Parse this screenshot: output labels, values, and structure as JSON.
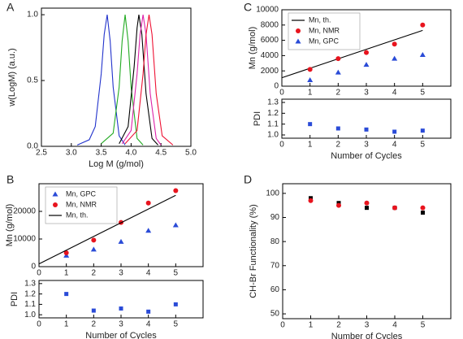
{
  "chart_data": [
    {
      "type": "line",
      "panel": "A",
      "xlabel": "Log M (g/mol)",
      "ylabel": "w(LogM) (a.u.)",
      "xlim": [
        2.5,
        5.0
      ],
      "xticks": [
        2.5,
        {
          "value": 3.0,
          "label": "3.0"
        },
        3.5,
        {
          "value": 4.0,
          "label": "4.0"
        },
        4.5,
        {
          "value": 5.0,
          "label": "5.0"
        }
      ],
      "ylim": [
        0,
        1.05
      ],
      "yticks": [
        {
          "value": 0,
          "label": "0.0"
        },
        0.5,
        {
          "value": 1.0,
          "label": "1.0"
        }
      ],
      "series": [
        {
          "color": "#2233cc",
          "x": [
            3.1,
            3.3,
            3.4,
            3.5,
            3.55,
            3.6,
            3.65,
            3.7,
            3.8,
            3.9
          ],
          "values": [
            0.01,
            0.05,
            0.15,
            0.55,
            0.85,
            1.0,
            0.8,
            0.45,
            0.08,
            0.01
          ]
        },
        {
          "color": "#22aa22",
          "x": [
            3.5,
            3.7,
            3.8,
            3.85,
            3.9,
            3.95,
            4.0,
            4.1,
            4.2
          ],
          "values": [
            0.02,
            0.1,
            0.45,
            0.8,
            1.0,
            0.8,
            0.45,
            0.06,
            0.01
          ]
        },
        {
          "color": "#000000",
          "x": [
            3.8,
            3.95,
            4.05,
            4.1,
            4.13,
            4.18,
            4.25,
            4.35,
            4.45
          ],
          "values": [
            0.02,
            0.15,
            0.6,
            0.9,
            1.0,
            0.85,
            0.4,
            0.06,
            0.01
          ]
        },
        {
          "color": "#dd22aa",
          "x": [
            3.85,
            4.0,
            4.1,
            4.15,
            4.2,
            4.25,
            4.32,
            4.42,
            4.5
          ],
          "values": [
            0.02,
            0.12,
            0.55,
            0.85,
            1.0,
            0.85,
            0.4,
            0.06,
            0.01
          ]
        },
        {
          "color": "#ee1133",
          "x": [
            3.9,
            4.1,
            4.2,
            4.25,
            4.3,
            4.35,
            4.42,
            4.52,
            4.7
          ],
          "values": [
            0.02,
            0.12,
            0.55,
            0.85,
            1.0,
            0.85,
            0.4,
            0.08,
            0.01
          ]
        }
      ]
    },
    {
      "type": "scatter",
      "panel": "B",
      "ylabel": "Mn (g/mol)",
      "legend": "upper left",
      "x": [
        1,
        2,
        3,
        4,
        5
      ],
      "xlim": [
        0,
        6
      ],
      "xticks": [
        0,
        1,
        2,
        3,
        4,
        5
      ],
      "ylim": [
        0,
        30000
      ],
      "yticks": [
        0,
        10000,
        20000
      ],
      "series": [
        {
          "name": "Mn, GPC",
          "color": "#2a4bd7",
          "marker": "triangle",
          "values": [
            4000,
            6200,
            9000,
            13000,
            15000
          ]
        },
        {
          "name": "Mn, NMR",
          "color": "#e8141e",
          "marker": "circle",
          "values": [
            5000,
            9600,
            16000,
            23000,
            27500
          ]
        },
        {
          "name": "Mn, th.",
          "color": "#000000",
          "marker": "line",
          "x": [
            0,
            5
          ],
          "values": [
            1000,
            25800
          ]
        }
      ]
    },
    {
      "type": "scatter",
      "ylabel": "PDI",
      "xlabel": "Number of Cycles",
      "x": [
        1,
        2,
        3,
        4,
        5
      ],
      "xlim": [
        0,
        6
      ],
      "xticks": [
        0,
        1,
        2,
        3,
        4,
        5
      ],
      "ylim": [
        0.97,
        1.33
      ],
      "yticks": [
        {
          "value": 1.0,
          "label": "1.0"
        },
        1.1,
        1.2,
        1.3
      ],
      "series": [
        {
          "color": "#2a4bd7",
          "marker": "square",
          "values": [
            1.2,
            1.04,
            1.06,
            1.03,
            1.1
          ]
        }
      ]
    },
    {
      "type": "scatter",
      "panel": "C",
      "ylabel": "Mn (g/mol)",
      "legend": "upper left",
      "x": [
        1,
        2,
        3,
        4,
        5
      ],
      "xlim": [
        0,
        6
      ],
      "xticks": [
        0,
        1,
        2,
        3,
        4,
        5
      ],
      "ylim": [
        0,
        10000
      ],
      "yticks": [
        0,
        2000,
        4000,
        6000,
        8000,
        10000
      ],
      "series": [
        {
          "name": "Mn, th.",
          "color": "#000000",
          "marker": "line",
          "x": [
            0,
            5
          ],
          "values": [
            1100,
            7300
          ]
        },
        {
          "name": "Mn, NMR",
          "color": "#e8141e",
          "marker": "circle",
          "values": [
            2200,
            3600,
            4400,
            5500,
            8000
          ]
        },
        {
          "name": "Mn, GPC",
          "color": "#2a4bd7",
          "marker": "triangle",
          "values": [
            800,
            1800,
            2800,
            3600,
            4100
          ]
        }
      ]
    },
    {
      "type": "scatter",
      "ylabel": "PDI",
      "xlabel": "Number of Cycles",
      "x": [
        1,
        2,
        3,
        4,
        5
      ],
      "xlim": [
        0,
        6
      ],
      "xticks": [
        0,
        1,
        2,
        3,
        4,
        5
      ],
      "ylim": [
        0.97,
        1.33
      ],
      "yticks": [
        {
          "value": 1.0,
          "label": "1.0"
        },
        1.1,
        1.2,
        1.3
      ],
      "series": [
        {
          "color": "#2a4bd7",
          "marker": "square",
          "values": [
            1.1,
            1.06,
            1.05,
            1.03,
            1.04
          ]
        }
      ]
    },
    {
      "type": "scatter",
      "panel": "D",
      "ylabel": "CH-Br Functionality (%)",
      "xlabel": "Number of Cycles",
      "x": [
        1,
        2,
        3,
        4,
        5
      ],
      "xlim": [
        0,
        6
      ],
      "xticks": [
        0,
        1,
        2,
        3,
        4,
        5
      ],
      "ylim": [
        48,
        104
      ],
      "yticks": [
        50,
        60,
        70,
        80,
        90,
        100
      ],
      "series": [
        {
          "color": "#000000",
          "marker": "square",
          "values": [
            98,
            96,
            94,
            94,
            92
          ]
        },
        {
          "color": "#e8141e",
          "marker": "circle",
          "values": [
            97,
            95,
            96,
            94,
            94
          ]
        }
      ]
    }
  ]
}
